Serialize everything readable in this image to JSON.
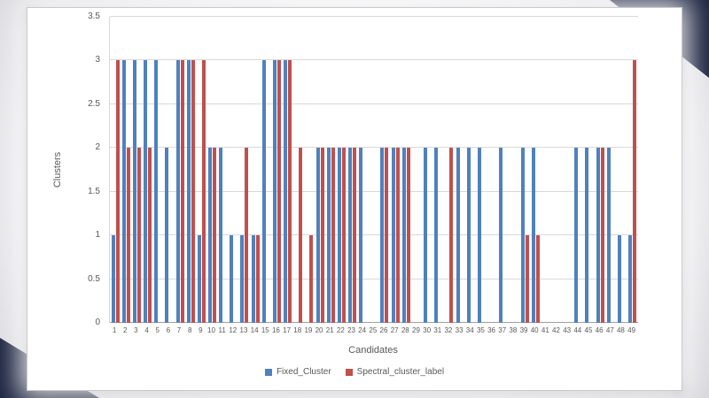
{
  "chart_data": {
    "type": "bar",
    "title": "",
    "xlabel": "Candidates",
    "ylabel": "Clusters",
    "ylim": [
      0,
      3.5
    ],
    "yticks": [
      0,
      0.5,
      1,
      1.5,
      2,
      2.5,
      3,
      3.5
    ],
    "grid": true,
    "legend_position": "bottom",
    "categories": [
      "1",
      "2",
      "3",
      "4",
      "5",
      "6",
      "7",
      "8",
      "9",
      "10",
      "11",
      "12",
      "13",
      "14",
      "15",
      "16",
      "17",
      "18",
      "19",
      "20",
      "21",
      "22",
      "23",
      "24",
      "25",
      "26",
      "27",
      "28",
      "29",
      "30",
      "31",
      "32",
      "33",
      "34",
      "35",
      "36",
      "37",
      "38",
      "39",
      "40",
      "41",
      "42",
      "43",
      "44",
      "45",
      "46",
      "47",
      "48",
      "49"
    ],
    "series": [
      {
        "name": "Fixed_Cluster",
        "color": "#4F81BD",
        "values": [
          1,
          3,
          3,
          3,
          3,
          2,
          3,
          3,
          1,
          2,
          2,
          1,
          1,
          1,
          3,
          3,
          3,
          0,
          0,
          2,
          2,
          2,
          2,
          2,
          0,
          2,
          2,
          2,
          0,
          2,
          2,
          0,
          2,
          2,
          2,
          0,
          2,
          0,
          2,
          2,
          0,
          0,
          0,
          2,
          2,
          2,
          2,
          1,
          1
        ]
      },
      {
        "name": "Spectral_cluster_label",
        "color": "#C0504D",
        "values": [
          3,
          2,
          2,
          2,
          0,
          0,
          3,
          3,
          3,
          2,
          0,
          0,
          2,
          1,
          0,
          3,
          3,
          2,
          1,
          2,
          2,
          2,
          2,
          0,
          0,
          2,
          2,
          2,
          0,
          0,
          0,
          2,
          0,
          0,
          0,
          0,
          0,
          0,
          1,
          1,
          0,
          0,
          0,
          0,
          0,
          2,
          0,
          0,
          3
        ]
      }
    ]
  }
}
